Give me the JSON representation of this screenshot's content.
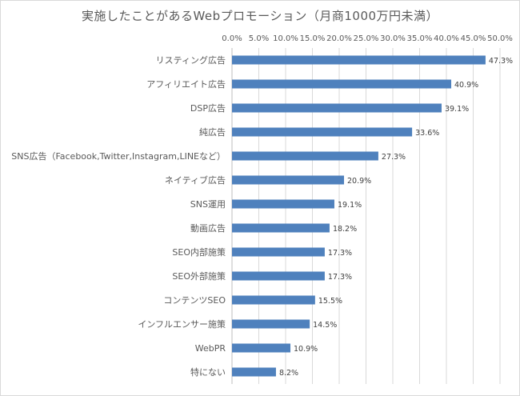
{
  "chart_data": {
    "type": "bar",
    "orientation": "horizontal",
    "title": "実施したことがあるWebプロモーション（月商1000万円未満）",
    "xlabel": "",
    "ylabel": "",
    "xlim": [
      0,
      50
    ],
    "x_ticks": [
      "0.0%",
      "5.0%",
      "10.0%",
      "15.0%",
      "20.0%",
      "25.0%",
      "30.0%",
      "35.0%",
      "40.0%",
      "45.0%",
      "50.0%"
    ],
    "x_axis_position": "top",
    "grid": "vertical",
    "legend": "none",
    "bar_color": "#4f81bd",
    "categories": [
      "リスティング広告",
      "アフィリエイト広告",
      "DSP広告",
      "純広告",
      "SNS広告（Facebook,Twitter,Instagram,LINEなど）",
      "ネイティブ広告",
      "SNS運用",
      "動画広告",
      "SEO内部施策",
      "SEO外部施策",
      "コンテンツSEO",
      "インフルエンサー施策",
      "WebPR",
      "特にない"
    ],
    "values": [
      47.3,
      40.9,
      39.1,
      33.6,
      27.3,
      20.9,
      19.1,
      18.2,
      17.3,
      17.3,
      15.5,
      14.5,
      10.9,
      8.2
    ],
    "data_labels": [
      "47.3%",
      "40.9%",
      "39.1%",
      "33.6%",
      "27.3%",
      "20.9%",
      "19.1%",
      "18.2%",
      "17.3%",
      "17.3%",
      "15.5%",
      "14.5%",
      "10.9%",
      "8.2%"
    ]
  }
}
